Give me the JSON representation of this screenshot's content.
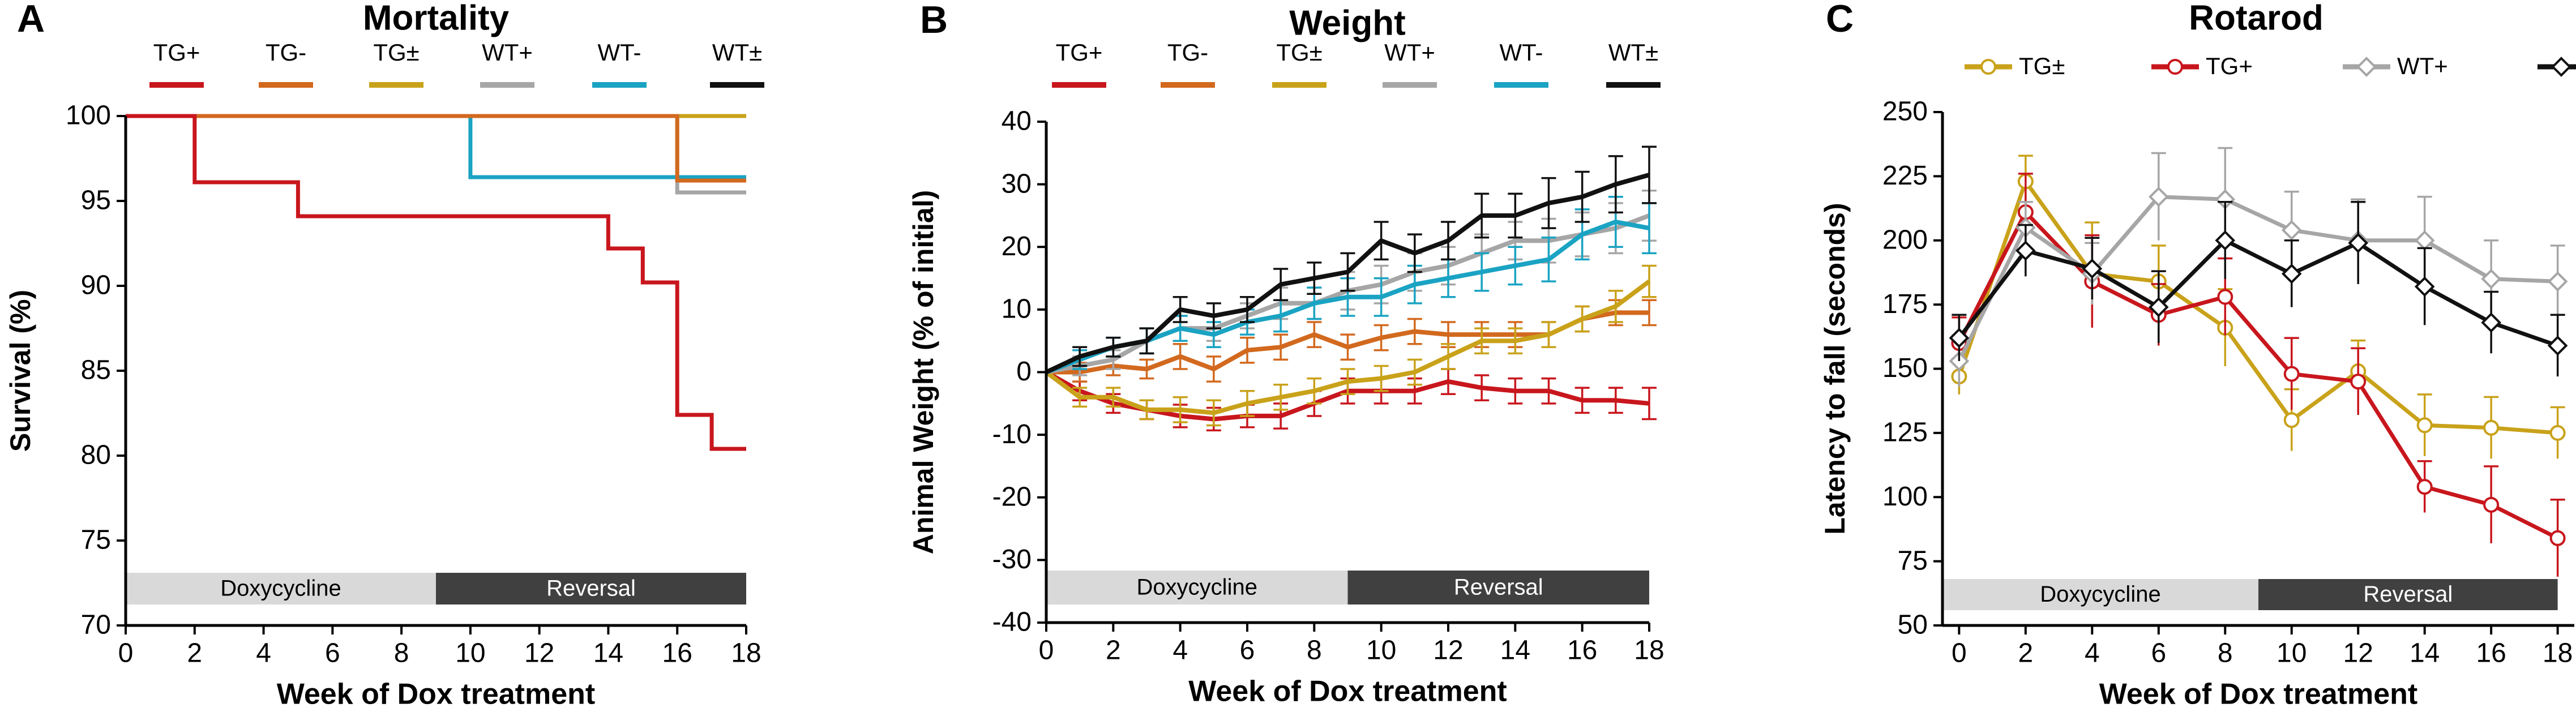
{
  "colors": {
    "TG+": "#c8161d",
    "TG-": "#d2691e",
    "TG±": "#c9a21a",
    "WT+": "#a6a6a6",
    "WT-": "#1aa3c3",
    "WT±": "#111111",
    "band_light": "#d9d9d9",
    "band_dark": "#404040"
  },
  "chart_data": [
    {
      "type": "line",
      "panel_letter": "A",
      "title": "Mortality",
      "xlabel": "Week of Dox treatment",
      "ylabel": "Survival (%)",
      "xlim": [
        0,
        18
      ],
      "ylim": [
        70,
        100
      ],
      "xticks": [
        "0",
        "2",
        "4",
        "6",
        "8",
        "10",
        "12",
        "14",
        "16",
        "18"
      ],
      "yticks": [
        "70",
        "75",
        "80",
        "85",
        "90",
        "95",
        "100"
      ],
      "legend": [
        "TG+",
        "TG-",
        "TG±",
        "WT+",
        "WT-",
        "WT±"
      ],
      "bands": [
        {
          "label": "Doxycycline",
          "from": 0,
          "to": 9
        },
        {
          "label": "Reversal",
          "from": 9,
          "to": 18
        }
      ],
      "series": [
        {
          "name": "WT±",
          "step": [
            [
              0,
              100
            ],
            [
              18,
              100
            ]
          ]
        },
        {
          "name": "TG±",
          "step": [
            [
              0,
              100
            ],
            [
              18,
              100
            ]
          ]
        },
        {
          "name": "WT+",
          "step": [
            [
              0,
              100
            ],
            [
              16,
              100
            ],
            [
              16,
              95.5
            ],
            [
              18,
              95.5
            ]
          ]
        },
        {
          "name": "WT-",
          "step": [
            [
              0,
              100
            ],
            [
              10,
              100
            ],
            [
              10,
              96.4
            ],
            [
              18,
              96.4
            ]
          ]
        },
        {
          "name": "TG-",
          "step": [
            [
              0,
              100
            ],
            [
              16,
              100
            ],
            [
              16,
              96.2
            ],
            [
              18,
              96.2
            ]
          ]
        },
        {
          "name": "TG+",
          "step": [
            [
              0,
              100
            ],
            [
              2,
              100
            ],
            [
              2,
              96.1
            ],
            [
              5,
              96.1
            ],
            [
              5,
              94.1
            ],
            [
              14,
              94.1
            ],
            [
              14,
              92.2
            ],
            [
              15,
              92.2
            ],
            [
              15,
              90.2
            ],
            [
              16,
              90.2
            ],
            [
              16,
              82.4
            ],
            [
              17,
              82.4
            ],
            [
              17,
              80.4
            ],
            [
              18,
              80.4
            ]
          ]
        }
      ]
    },
    {
      "type": "line",
      "panel_letter": "B",
      "title": "Weight",
      "xlabel": "Week of Dox treatment",
      "ylabel": "Animal Weight (% of initial)",
      "xlim": [
        0,
        18
      ],
      "ylim": [
        -40,
        40
      ],
      "xticks": [
        "0",
        "2",
        "4",
        "6",
        "8",
        "10",
        "12",
        "14",
        "16",
        "18"
      ],
      "yticks": [
        "-40",
        "-30",
        "-20",
        "-10",
        "0",
        "10",
        "20",
        "30",
        "40"
      ],
      "legend": [
        "TG+",
        "TG-",
        "TG±",
        "WT+",
        "WT-",
        "WT±"
      ],
      "bands": [
        {
          "label": "Doxycycline",
          "from": 0,
          "to": 9
        },
        {
          "label": "Reversal",
          "from": 9,
          "to": 18
        }
      ],
      "x": [
        0,
        1,
        2,
        3,
        4,
        5,
        6,
        7,
        8,
        9,
        10,
        11,
        12,
        13,
        14,
        15,
        16,
        17,
        18
      ],
      "series": [
        {
          "name": "TG+",
          "values": [
            0,
            -3,
            -5,
            -6,
            -7,
            -7.5,
            -7,
            -7,
            -5,
            -3,
            -3,
            -3,
            -1.5,
            -2.5,
            -3,
            -3,
            -4.5,
            -4.5,
            -5
          ],
          "err": [
            0,
            1.5,
            1.5,
            1.5,
            1.8,
            1.8,
            1.8,
            2,
            2,
            2,
            2,
            2,
            2,
            2,
            2,
            2,
            2,
            2,
            2.5
          ]
        },
        {
          "name": "TG-",
          "values": [
            0,
            0,
            1,
            0.5,
            2.5,
            0.5,
            3.5,
            4,
            6,
            4,
            5.5,
            6.5,
            6,
            6,
            6,
            6,
            8.5,
            9.5,
            9.5
          ],
          "err": [
            0,
            1.5,
            1.5,
            1.5,
            2,
            2,
            2,
            2,
            2,
            2,
            2,
            2,
            2,
            2,
            2,
            2,
            2,
            2,
            2
          ]
        },
        {
          "name": "TG±",
          "values": [
            0,
            -4,
            -4,
            -6,
            -6,
            -6.5,
            -5,
            -4,
            -3,
            -1.5,
            -1,
            0,
            2.5,
            5,
            5,
            6,
            8.5,
            10.5,
            14.5
          ],
          "err": [
            0,
            1.5,
            1.5,
            1.5,
            2,
            2,
            2,
            2,
            2,
            2,
            2,
            2,
            2,
            2,
            2,
            2,
            2,
            2.5,
            2.5
          ]
        },
        {
          "name": "WT+",
          "values": [
            0,
            1,
            2,
            5,
            7,
            7,
            9,
            11,
            11,
            13,
            14,
            16,
            17,
            19,
            21,
            21,
            22,
            23,
            25
          ],
          "err": [
            0,
            1.5,
            1.5,
            2,
            2,
            2,
            2,
            2.5,
            2.5,
            3,
            3,
            3,
            3,
            3,
            3,
            3.5,
            3.5,
            4,
            4
          ]
        },
        {
          "name": "WT-",
          "values": [
            0,
            2,
            4,
            5,
            7,
            6,
            8,
            9,
            11,
            12,
            12,
            14,
            15,
            16,
            17,
            18,
            22,
            24,
            23
          ],
          "err": [
            0,
            1.5,
            1.5,
            2,
            2,
            2,
            2,
            2.5,
            2.5,
            3,
            3,
            3,
            3,
            3,
            3,
            3.5,
            4,
            4,
            4
          ]
        },
        {
          "name": "WT±",
          "values": [
            0,
            2.5,
            4,
            5,
            10,
            9,
            10,
            14,
            15,
            16,
            21,
            19,
            21,
            25,
            25,
            27,
            28,
            30,
            31.5
          ],
          "err": [
            0,
            1.5,
            1.5,
            2,
            2,
            2,
            2,
            2.5,
            2.5,
            3,
            3,
            3,
            3,
            3.5,
            3.5,
            4,
            4,
            4.5,
            4.5
          ]
        }
      ]
    },
    {
      "type": "line",
      "panel_letter": "C",
      "title": "Rotarod",
      "xlabel": "Week of Dox treatment",
      "ylabel": "Latency to fall (seconds)",
      "xlim": [
        -0.5,
        18.5
      ],
      "ylim": [
        50,
        250
      ],
      "xticks": [
        "0",
        "2",
        "4",
        "6",
        "8",
        "10",
        "12",
        "14",
        "16",
        "18"
      ],
      "yticks": [
        "50",
        "75",
        "100",
        "125",
        "150",
        "175",
        "200",
        "225",
        "250"
      ],
      "legend": [
        "TG±",
        "TG+",
        "WT+",
        "WT±"
      ],
      "bands": [
        {
          "label": "Doxycycline",
          "from": -0.5,
          "to": 9
        },
        {
          "label": "Reversal",
          "from": 9,
          "to": 18
        }
      ],
      "x": [
        0,
        2,
        4,
        6,
        8,
        10,
        12,
        14,
        16,
        18
      ],
      "series": [
        {
          "name": "TG±",
          "marker": "circle",
          "values": [
            147,
            223,
            187,
            184,
            166,
            130,
            149,
            128,
            127,
            125
          ],
          "err": [
            7,
            10,
            20,
            14,
            15,
            12,
            12,
            12,
            12,
            10
          ]
        },
        {
          "name": "TG+",
          "marker": "circle",
          "values": [
            160,
            211,
            184,
            171,
            178,
            148,
            145,
            104,
            97,
            84
          ],
          "err": [
            10,
            15,
            18,
            12,
            15,
            14,
            13,
            10,
            15,
            15
          ]
        },
        {
          "name": "WT+",
          "marker": "diamond",
          "values": [
            153,
            205,
            187,
            217,
            216,
            204,
            200,
            200,
            185,
            184
          ],
          "err": [
            10,
            10,
            12,
            17,
            20,
            15,
            16,
            17,
            15,
            14
          ]
        },
        {
          "name": "WT±",
          "marker": "diamond",
          "values": [
            162,
            196,
            189,
            174,
            200,
            187,
            199,
            182,
            168,
            159
          ],
          "err": [
            9,
            10,
            12,
            14,
            15,
            13,
            16,
            15,
            12,
            12
          ]
        }
      ]
    }
  ]
}
